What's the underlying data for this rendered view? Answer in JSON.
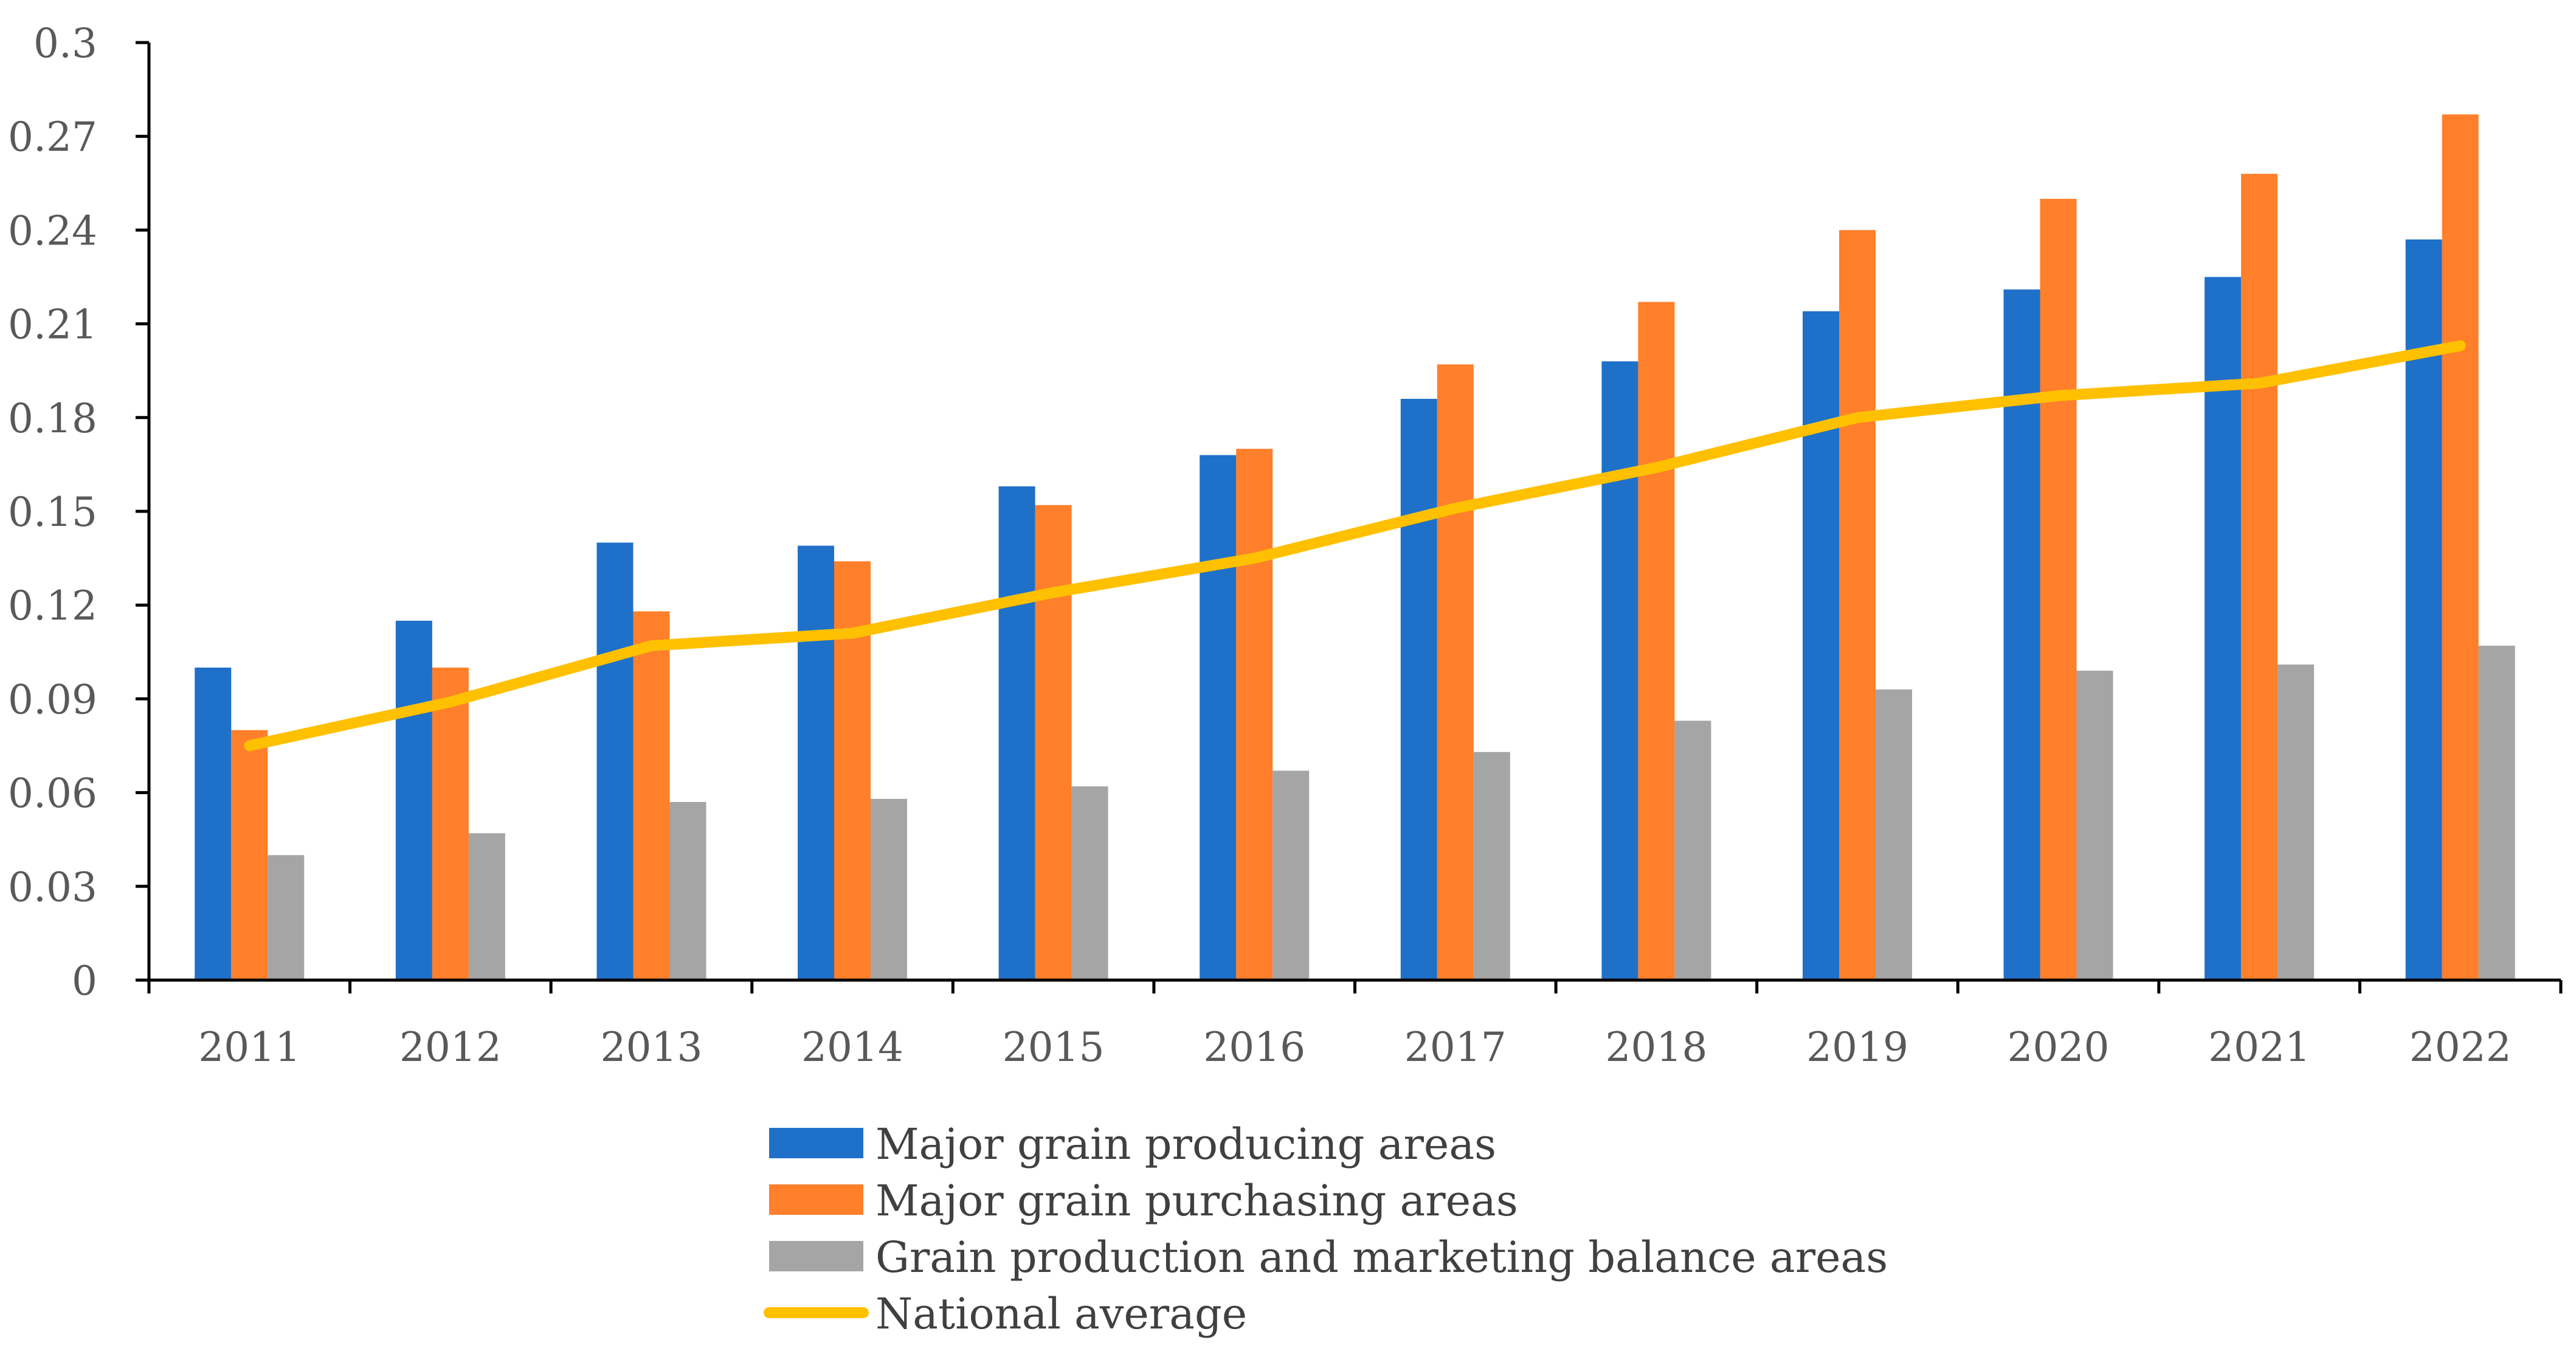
{
  "chart_data": {
    "type": "bar",
    "title": "",
    "xlabel": "",
    "ylabel": "",
    "ylim": [
      0,
      0.3
    ],
    "yticks": [
      "0",
      "0.03",
      "0.06",
      "0.09",
      "0.12",
      "0.15",
      "0.18",
      "0.21",
      "0.24",
      "0.27",
      "0.3"
    ],
    "categories": [
      "2011",
      "2012",
      "2013",
      "2014",
      "2015",
      "2016",
      "2017",
      "2018",
      "2019",
      "2020",
      "2021",
      "2022"
    ],
    "series": [
      {
        "name": "Major grain producing areas",
        "type": "bar",
        "color": "#1F70C8",
        "values": [
          0.1,
          0.115,
          0.14,
          0.139,
          0.158,
          0.168,
          0.186,
          0.198,
          0.214,
          0.221,
          0.225,
          0.237
        ]
      },
      {
        "name": "Major grain purchasing areas",
        "type": "bar",
        "color": "#FF7F2A",
        "values": [
          0.08,
          0.1,
          0.118,
          0.134,
          0.152,
          0.17,
          0.197,
          0.217,
          0.24,
          0.25,
          0.258,
          0.277
        ]
      },
      {
        "name": "Grain production and marketing balance areas",
        "type": "bar",
        "color": "#A5A5A5",
        "values": [
          0.04,
          0.047,
          0.057,
          0.058,
          0.062,
          0.067,
          0.073,
          0.083,
          0.093,
          0.099,
          0.101,
          0.107
        ]
      },
      {
        "name": "National average",
        "type": "line",
        "color": "#FFC000",
        "values": [
          0.075,
          0.089,
          0.107,
          0.111,
          0.124,
          0.135,
          0.151,
          0.164,
          0.18,
          0.187,
          0.191,
          0.203
        ]
      }
    ],
    "grid": false,
    "legend_position": "bottom-center"
  }
}
